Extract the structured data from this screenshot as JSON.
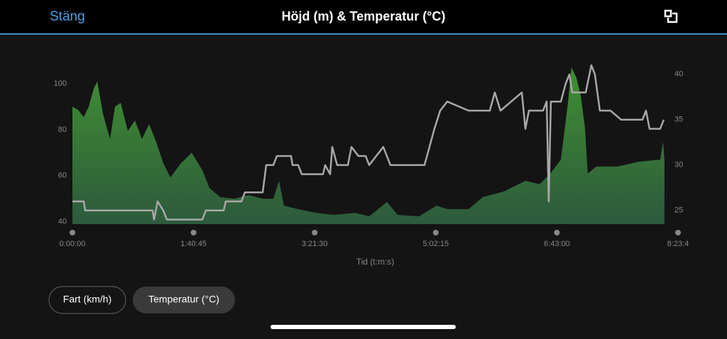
{
  "header": {
    "close": "Stäng",
    "title": "Höjd (m) & Temperatur (°C)"
  },
  "buttons": [
    "Fart (km/h)",
    "Temperatur (°C)"
  ],
  "chart_data": {
    "type": "line",
    "xlabel": "Tid (t:m:s)",
    "xlim": [
      0,
      30225
    ],
    "xticks": [
      {
        "value": 0,
        "label": "0:00:00"
      },
      {
        "value": 6045,
        "label": "1:40:45"
      },
      {
        "value": 12090,
        "label": "3:21:30"
      },
      {
        "value": 18135,
        "label": "5:02:15"
      },
      {
        "value": 24180,
        "label": "6:43:00"
      },
      {
        "value": 30225,
        "label": "8:23:4"
      }
    ],
    "ylim": [
      39,
      108
    ],
    "yticks": [
      40,
      60,
      80,
      100
    ],
    "y2lim": [
      23.5,
      41
    ],
    "y2ticks": [
      25,
      30,
      35,
      40
    ],
    "series": [
      {
        "fill": "area",
        "color": "#3f8f32",
        "x": [
          0,
          283,
          567,
          815,
          1063,
          1240,
          1523,
          1878,
          2126,
          2409,
          2764,
          3118,
          3472,
          3827,
          4181,
          4535,
          4890,
          5421,
          5953,
          6484,
          6838,
          7370,
          8078,
          8787,
          9495,
          10027,
          10310,
          10558,
          11267,
          12153,
          13039,
          14102,
          14810,
          15696,
          16228,
          17291,
          18177,
          18708,
          19771,
          20480,
          21543,
          22606,
          23315,
          23846,
          24377,
          24732,
          24909,
          25157,
          25369,
          25581,
          25723,
          26148,
          27211,
          28274,
          29337,
          29478,
          29549
        ],
        "values": [
          90,
          88.6,
          85.5,
          90,
          97.8,
          101,
          87,
          76,
          90,
          91.7,
          79.4,
          84,
          76,
          82.4,
          74.7,
          65.5,
          59.3,
          65.5,
          70,
          62.4,
          54.7,
          50.7,
          50,
          51.6,
          50,
          50,
          57.8,
          47,
          45.5,
          43.9,
          43,
          43.9,
          42.4,
          48.6,
          43,
          42.4,
          47,
          45.5,
          45.5,
          50.7,
          53.2,
          57.8,
          56.3,
          60.9,
          67,
          91.7,
          107,
          102.5,
          94.8,
          80.9,
          60.9,
          64,
          64,
          66.1,
          67,
          74.7,
          67
        ]
      },
      {
        "axis": "y2",
        "color": "#a8a8a8",
        "x": [
          0,
          567,
          638,
          4004,
          4074,
          4252,
          4535,
          4712,
          6484,
          6661,
          7547,
          7653,
          8432,
          8609,
          9495,
          9672,
          10027,
          10204,
          10912,
          10983,
          11267,
          11444,
          12507,
          12613,
          12861,
          12967,
          13215,
          13747,
          13924,
          14278,
          14633,
          14810,
          15518,
          15872,
          17573,
          17821,
          18069,
          18353,
          18708,
          19771,
          20833,
          21081,
          21365,
          22428,
          22605,
          22783,
          23490,
          23668,
          23774,
          23880,
          24377,
          24624,
          24802,
          24944,
          25617,
          25900,
          26077,
          26325,
          26856,
          27388,
          28451,
          28628,
          28805,
          29337,
          29514
        ],
        "values": [
          26,
          26,
          25,
          25,
          24,
          26,
          25,
          24,
          24,
          25,
          25,
          26,
          26,
          27,
          27,
          30,
          30,
          31,
          31,
          30,
          30,
          29,
          29,
          30,
          29,
          32,
          30,
          30,
          32,
          31,
          31,
          30,
          32,
          30,
          30,
          32,
          34,
          36,
          37,
          36,
          36,
          38,
          36,
          38,
          34,
          36,
          36,
          37,
          26,
          37,
          37,
          39,
          40,
          38,
          38,
          41,
          40,
          36,
          36,
          35,
          35,
          36,
          34,
          34,
          35
        ]
      }
    ]
  }
}
